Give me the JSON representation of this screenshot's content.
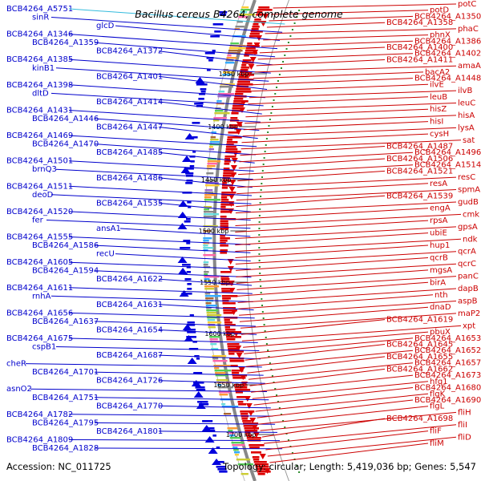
{
  "title": "Bacillus cereus B4264, complete genome",
  "footer": {
    "accession": "Accession: NC_011725",
    "summary": "Topology: circular; Length: 5,419,036 bp; Genes: 5,547"
  },
  "colors": {
    "forward": "#0000dd",
    "reverse": "#dd0000",
    "label_left": "#0000cc",
    "label_right": "#cc0000",
    "highlight": "#33bbdd",
    "backbone": "#888888",
    "tick": "#2a8a2a"
  },
  "ticks": [
    "1350 kbp",
    "1400 kbp",
    "1450 kbp",
    "1500 kbp",
    "1550 kbp",
    "1600 kbp",
    "1650 kbp",
    "1700 kbp"
  ],
  "left_labels": [
    "BCB4264_A5751",
    "sinR",
    "glcD",
    "BCB4264_A1346",
    "BCB4264_A1359",
    "BCB4264_A1372",
    "BCB4264_A1385",
    "kinB1",
    "BCB4264_A1401",
    "BCB4264_A1398",
    "dltD",
    "BCB4264_A1414",
    "BCB4264_A1431",
    "BCB4264_A1446",
    "BCB4264_A1447",
    "BCB4264_A1469",
    "BCB4264_A1470",
    "BCB4264_A1485",
    "BCB4264_A1501",
    "brnQ3",
    "BCB4264_A1486",
    "BCB4264_A1511",
    "deoD",
    "BCB4264_A1535",
    "BCB4264_A1520",
    "fer",
    "ansA1",
    "BCB4264_A1555",
    "BCB4264_A1586",
    "recU",
    "BCB4264_A1605",
    "BCB4264_A1594",
    "BCB4264_A1622",
    "BCB4264_A1611",
    "rnhA",
    "BCB4264_A1631",
    "BCB4264_A1656",
    "BCB4264_A1637",
    "BCB4264_A1654",
    "BCB4264_A1675",
    "cspB1",
    "BCB4264_A1687",
    "cheR",
    "BCB4264_A1701",
    "BCB4264_A1726",
    "asnO2",
    "BCB4264_A1751",
    "BCB4264_A1770",
    "BCB4264_A1782",
    "BCB4264_A1795",
    "BCB4264_A1801",
    "BCB4264_A1809",
    "BCB4264_A1828"
  ],
  "right_labels": [
    "potC",
    "potD",
    "BCB4264_A1350",
    "BCB4264_A1358",
    "phaC",
    "phnX",
    "BCB4264_A1386",
    "BCB4264_A1400",
    "BCB4264_A1402",
    "BCB4264_A1411",
    "amaA",
    "bacA2",
    "BCB4264_A1448",
    "ilvE",
    "ilvB",
    "leuB",
    "leuC",
    "hisZ",
    "hisA",
    "hisI",
    "lysA",
    "cysH",
    "sat",
    "BCB4264_A1487",
    "BCB4264_A1496",
    "BCB4264_A1506",
    "BCB4264_A1514",
    "BCB4264_A1521",
    "resC",
    "resA",
    "spmA",
    "BCB4264_A1539",
    "gudB",
    "engA",
    "cmk",
    "rpsA",
    "gpsA",
    "ubiE",
    "ndk",
    "hup1",
    "qcrA",
    "qcrB",
    "qcrC",
    "mgsA",
    "panC",
    "birA",
    "dapB",
    "nth",
    "aspB",
    "dnaD",
    "maP2",
    "BCB4264_A1619",
    "xpt",
    "pbuX",
    "BCB4264_A1653",
    "BCB4264_A1645",
    "BCB4264_A1652",
    "BCB4264_A1655",
    "BCB4264_A1657",
    "BCB4264_A1662",
    "BCB4264_A1673",
    "hfq1",
    "BCB4264_A1680",
    "flgK",
    "BCB4264_A1690",
    "flgL",
    "fliH",
    "BCB4264_A1698",
    "fliI",
    "fliF",
    "fliD",
    "fliM"
  ]
}
